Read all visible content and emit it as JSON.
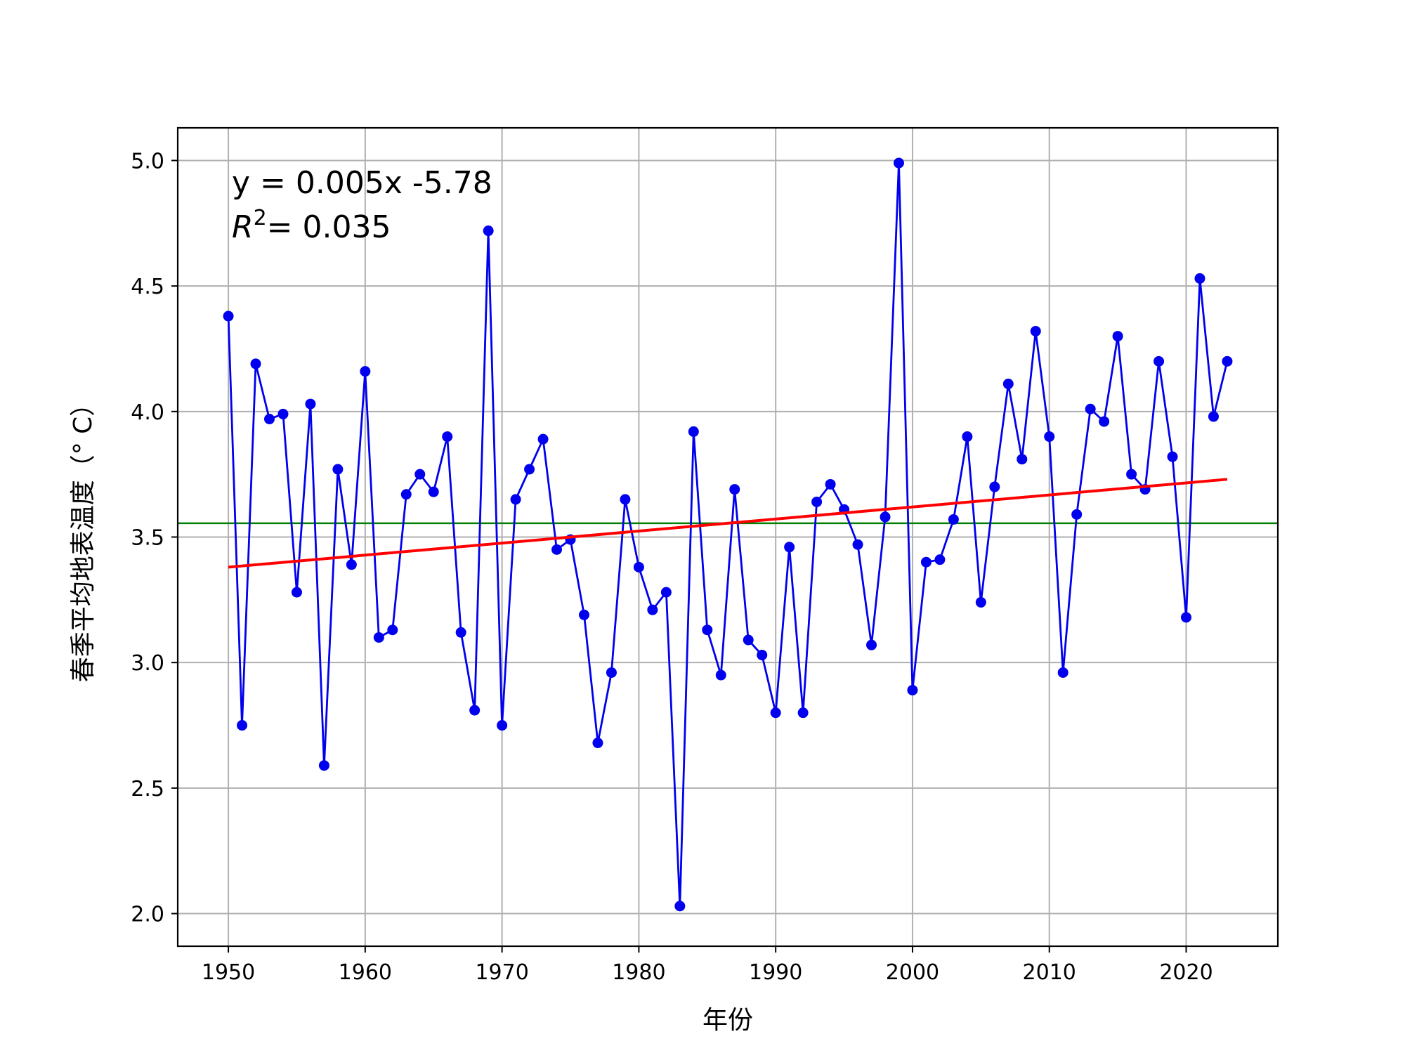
{
  "chart_data": {
    "type": "line",
    "title": "",
    "xlabel": "年份",
    "ylabel": "春季平均地表温度（° C）",
    "xlim": [
      1946.3,
      2026.7
    ],
    "ylim": [
      1.87,
      5.13
    ],
    "x_ticks": [
      1950,
      1960,
      1970,
      1980,
      1990,
      2000,
      2010,
      2020
    ],
    "y_ticks": [
      2.0,
      2.5,
      3.0,
      3.5,
      4.0,
      4.5,
      5.0
    ],
    "grid": true,
    "annotations": {
      "equation": "y = 0.005x -5.78",
      "r2_symbol": "R",
      "r2_power": "2",
      "r2_value": "= 0.035"
    },
    "mean_line": {
      "y": 3.555,
      "color": "#008000"
    },
    "trend_line": {
      "x": [
        1950,
        2023
      ],
      "y": [
        3.38,
        3.73
      ],
      "color": "#ff0000"
    },
    "series": [
      {
        "color": "#0000ee",
        "x": [
          1950,
          1951,
          1952,
          1953,
          1954,
          1955,
          1956,
          1957,
          1958,
          1959,
          1960,
          1961,
          1962,
          1963,
          1964,
          1965,
          1966,
          1967,
          1968,
          1969,
          1970,
          1971,
          1972,
          1973,
          1974,
          1975,
          1976,
          1977,
          1978,
          1979,
          1980,
          1981,
          1982,
          1983,
          1984,
          1985,
          1986,
          1987,
          1988,
          1989,
          1990,
          1991,
          1992,
          1993,
          1994,
          1995,
          1996,
          1997,
          1998,
          1999,
          2000,
          2001,
          2002,
          2003,
          2004,
          2005,
          2006,
          2007,
          2008,
          2009,
          2010,
          2011,
          2012,
          2013,
          2014,
          2015,
          2016,
          2017,
          2018,
          2019,
          2020,
          2021,
          2022,
          2023
        ],
        "values": [
          4.38,
          2.75,
          4.19,
          3.97,
          3.99,
          3.28,
          4.03,
          2.59,
          3.77,
          3.39,
          4.16,
          3.1,
          3.13,
          3.67,
          3.75,
          3.68,
          3.9,
          3.12,
          2.81,
          4.72,
          2.75,
          3.65,
          3.77,
          3.89,
          3.45,
          3.49,
          3.19,
          2.68,
          2.96,
          3.65,
          3.38,
          3.21,
          3.28,
          2.03,
          3.92,
          3.13,
          2.95,
          3.69,
          3.09,
          3.03,
          2.8,
          3.46,
          2.8,
          3.64,
          3.71,
          3.61,
          3.47,
          3.07,
          3.58,
          4.99,
          2.89,
          3.4,
          3.41,
          3.57,
          3.9,
          3.24,
          3.7,
          4.11,
          3.81,
          4.32,
          3.9,
          2.96,
          3.59,
          4.01,
          3.96,
          4.3,
          3.75,
          3.69,
          4.2,
          3.82,
          3.18,
          4.53,
          3.98,
          4.2
        ]
      }
    ]
  }
}
